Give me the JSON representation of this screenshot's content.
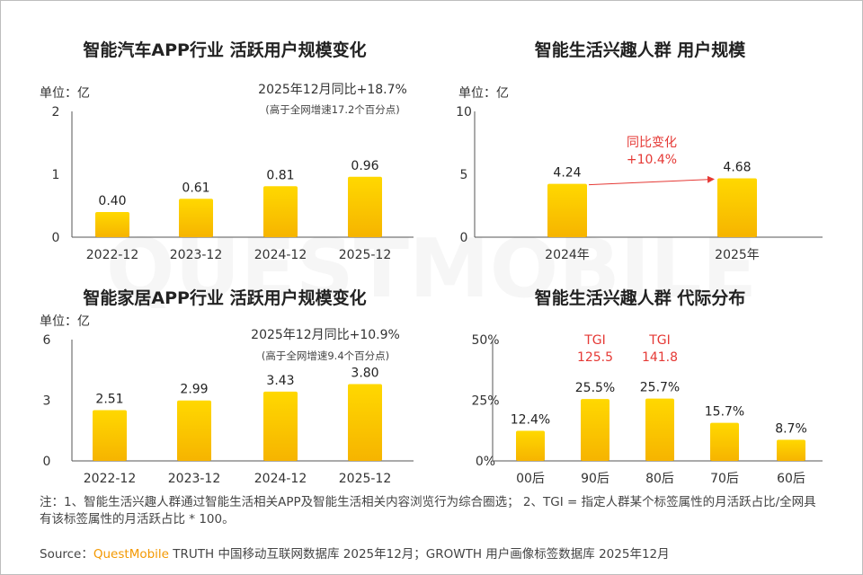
{
  "watermark": "QUESTMOBILE",
  "colors": {
    "bar_top": "#FFD800",
    "bar_bottom": "#F6B400",
    "accent_red": "#E53935",
    "axis": "#333333",
    "brand": "#F39800"
  },
  "chart_data": [
    {
      "type": "bar",
      "title": "智能汽车APP行业 活跃用户规模变化",
      "unit_label": "单位：亿",
      "categories": [
        "2022-12",
        "2023-12",
        "2024-12",
        "2025-12"
      ],
      "values": [
        0.4,
        0.61,
        0.81,
        0.96
      ],
      "value_labels": [
        "0.40",
        "0.61",
        "0.81",
        "0.96"
      ],
      "yticks": [
        "0",
        "1",
        "2"
      ],
      "ylim": [
        0,
        2
      ],
      "annotation": "2025年12月同比+18.7%",
      "annotation_sub": "(高于全网增速17.2个百分点)"
    },
    {
      "type": "bar",
      "title": "智能生活兴趣人群 用户规模",
      "unit_label": "单位：亿",
      "categories": [
        "2024年",
        "2025年"
      ],
      "values": [
        4.24,
        4.68
      ],
      "value_labels": [
        "4.24",
        "4.68"
      ],
      "yticks": [
        "0",
        "5",
        "10"
      ],
      "ylim": [
        0,
        10
      ],
      "annotation": "同比变化",
      "annotation_sub": "+10.4%"
    },
    {
      "type": "bar",
      "title": "智能家居APP行业 活跃用户规模变化",
      "unit_label": "单位：亿",
      "categories": [
        "2022-12",
        "2023-12",
        "2024-12",
        "2025-12"
      ],
      "values": [
        2.51,
        2.99,
        3.43,
        3.8
      ],
      "value_labels": [
        "2.51",
        "2.99",
        "3.43",
        "3.80"
      ],
      "yticks": [
        "0",
        "3",
        "6"
      ],
      "ylim": [
        0,
        6
      ],
      "annotation": "2025年12月同比+10.9%",
      "annotation_sub": "(高于全网增速9.4个百分点)"
    },
    {
      "type": "bar",
      "title": "智能生活兴趣人群 代际分布",
      "categories": [
        "00后",
        "90后",
        "80后",
        "70后",
        "60后"
      ],
      "values": [
        12.4,
        25.5,
        25.7,
        15.7,
        8.7
      ],
      "value_labels": [
        "12.4%",
        "25.5%",
        "25.7%",
        "15.7%",
        "8.7%"
      ],
      "yticks": [
        "0%",
        "25%",
        "50%"
      ],
      "ylim": [
        0,
        50
      ],
      "tgi": [
        null,
        {
          "label": "TGI",
          "value": "125.5"
        },
        {
          "label": "TGI",
          "value": "141.8"
        },
        null,
        null
      ]
    }
  ],
  "footer": {
    "note": "注：1、智能生活兴趣人群通过智能生活相关APP及智能生活相关内容浏览行为综合圈选； 2、TGI = 指定人群某个标签属性的月活跃占比/全网具有该标签属性的月活跃占比 * 100。",
    "source_prefix": "Source：",
    "source_brand": "QuestMobile",
    "source_rest": " TRUTH 中国移动互联网数据库 2025年12月；GROWTH 用户画像标签数据库 2025年12月"
  }
}
